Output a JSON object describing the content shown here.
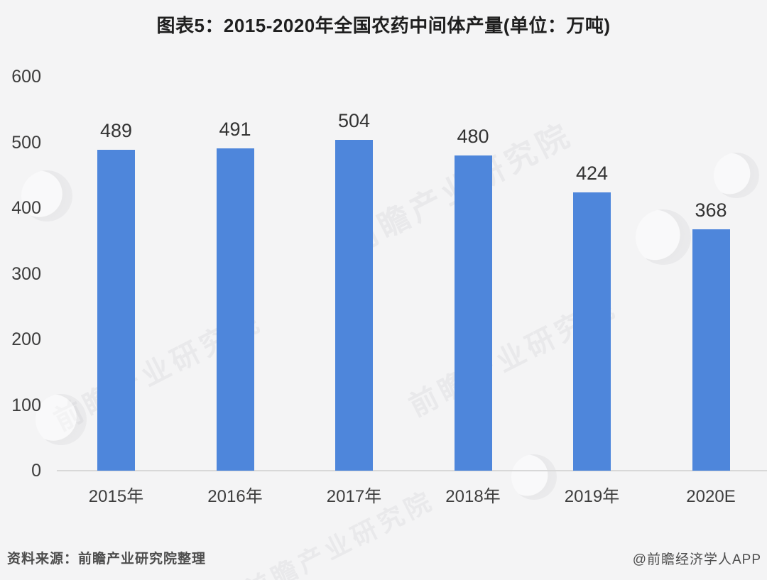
{
  "chart_data": {
    "type": "bar",
    "title": "图表5：2015-2020年全国农药中间体产量(单位：万吨)",
    "categories": [
      "2015年",
      "2016年",
      "2017年",
      "2018年",
      "2019年",
      "2020E"
    ],
    "values": [
      489,
      491,
      504,
      480,
      424,
      368
    ],
    "xlabel": "",
    "ylabel": "",
    "ylim": [
      0,
      600
    ],
    "yticks": [
      0,
      100,
      200,
      300,
      400,
      500,
      600
    ],
    "grid": false,
    "legend_position": "none",
    "colors": {
      "bar": "#4e86db",
      "axis_line": "#d8d8d8",
      "tick_text": "#3d3d3d",
      "value_text": "#333333",
      "title_text": "#1f1f1f",
      "background": "#f4f4f5"
    }
  },
  "footer": {
    "source": "资料来源：前瞻产业研究院整理",
    "credit": "@前瞻经济学人APP"
  },
  "watermark": {
    "text": "前瞻产业研究院",
    "logo": "qianzhan-swoosh-icon"
  }
}
